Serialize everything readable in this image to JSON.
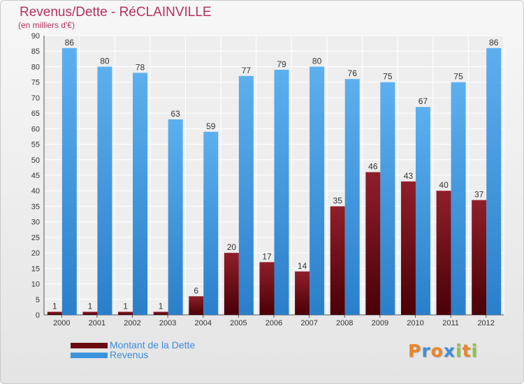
{
  "header": {
    "title": "Revenus/Dette - RéCLAINVILLE",
    "subtitle": "(en milliers d'€)"
  },
  "chart_data": {
    "type": "bar",
    "categories": [
      "2000",
      "2001",
      "2002",
      "2003",
      "2004",
      "2005",
      "2006",
      "2007",
      "2008",
      "2009",
      "2010",
      "2011",
      "2012"
    ],
    "series": [
      {
        "name": "Montant de la Dette",
        "color": "#6b0c12",
        "values": [
          1,
          1,
          1,
          1,
          6,
          20,
          17,
          14,
          35,
          46,
          43,
          40,
          37
        ]
      },
      {
        "name": "Revenus",
        "color": "#3a94dd",
        "values": [
          86,
          80,
          78,
          63,
          59,
          77,
          79,
          80,
          76,
          75,
          67,
          75,
          86
        ]
      }
    ],
    "ylim": [
      0,
      90
    ],
    "yticks": [
      0,
      5,
      10,
      15,
      20,
      25,
      30,
      35,
      40,
      45,
      50,
      55,
      60,
      65,
      70,
      75,
      80,
      85,
      90
    ],
    "grid": true,
    "data_labels": true,
    "legend_position": "bottom-left"
  },
  "legend": {
    "items": [
      {
        "label": "Montant de la Dette",
        "color": "#6b0c12"
      },
      {
        "label": "Revenus",
        "color": "#3a94dd"
      }
    ]
  },
  "logo": {
    "text": "Proxiti",
    "letters": [
      {
        "char": "P",
        "color": "#e8862a"
      },
      {
        "char": "r",
        "color": "#3c8fd8"
      },
      {
        "char": "o",
        "color": "#e8862a"
      },
      {
        "char": "x",
        "color": "#3c8fd8"
      },
      {
        "char": "i",
        "color": "#8cc63f"
      },
      {
        "char": "t",
        "color": "#e8862a"
      },
      {
        "char": "i",
        "color": "#8cc63f"
      }
    ]
  }
}
